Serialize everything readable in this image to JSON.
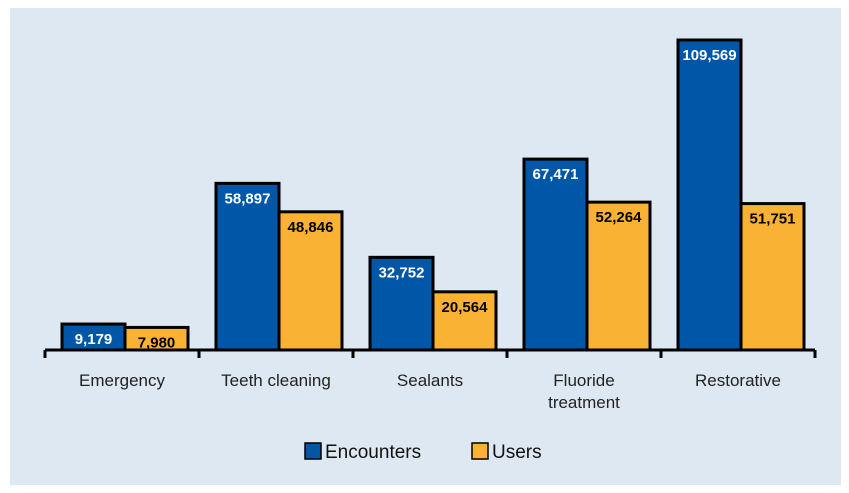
{
  "chart_data": {
    "type": "bar",
    "categories": [
      "Emergency",
      "Teeth cleaning",
      "Sealants",
      "Fluoride treatment",
      "Restorative"
    ],
    "series": [
      {
        "name": "Encounters",
        "color": "#0057a8",
        "values": [
          9179,
          58897,
          32752,
          67471,
          109569
        ],
        "value_labels": [
          "9,179",
          "58,897",
          "32,752",
          "67,471",
          "109,569"
        ]
      },
      {
        "name": "Users",
        "color": "#f9b233",
        "values": [
          7980,
          48846,
          20564,
          52264,
          51751
        ],
        "value_labels": [
          "7,980",
          "48,846",
          "20,564",
          "52,264",
          "51,751"
        ]
      }
    ]
  }
}
